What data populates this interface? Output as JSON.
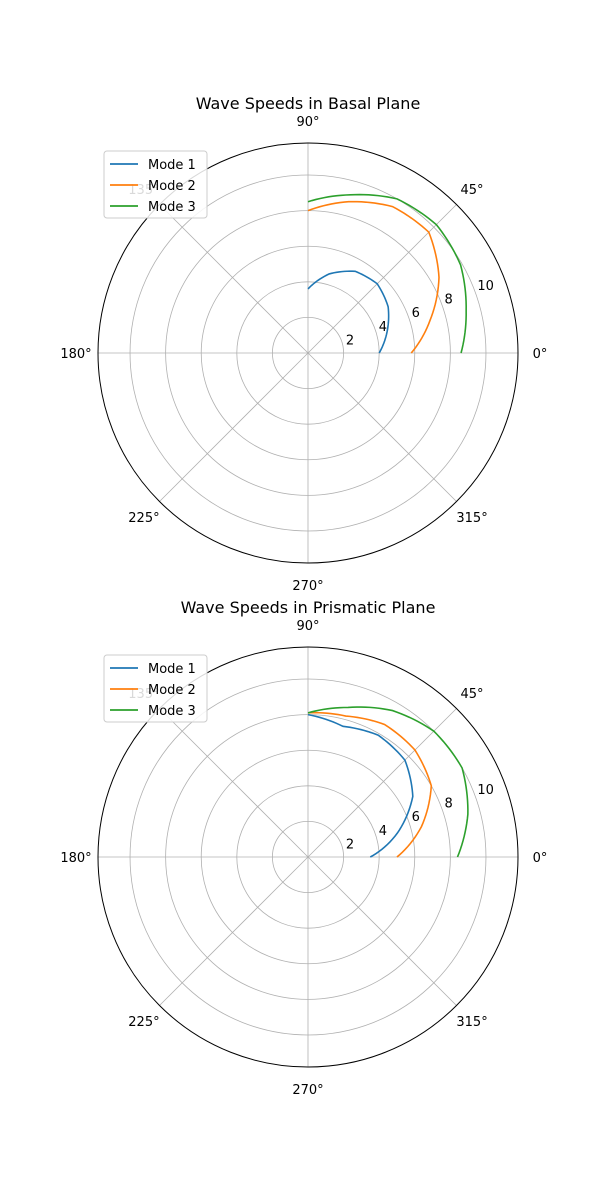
{
  "chart_data": [
    {
      "type": "line",
      "projection": "polar",
      "title": "Wave Speeds in Basal Plane",
      "theta_unit": "degrees",
      "theta_tick_labels": [
        "0°",
        "45°",
        "90°",
        "135°",
        "180°",
        "225°",
        "270°",
        "315°"
      ],
      "r_tick_labels": [
        "2",
        "4",
        "6",
        "8",
        "10"
      ],
      "rlim": [
        0,
        11.8
      ],
      "grid": true,
      "legend_position": "upper-left",
      "series": [
        {
          "name": "Mode 1",
          "color": "#1f77b4",
          "theta": [
            0,
            15,
            30,
            45,
            60,
            75,
            90
          ],
          "r": [
            4.0,
            4.6,
            5.2,
            5.5,
            5.3,
            4.6,
            3.6
          ]
        },
        {
          "name": "Mode 2",
          "color": "#ff7f0e",
          "theta": [
            0,
            15,
            30,
            45,
            60,
            75,
            90
          ],
          "r": [
            5.8,
            7.1,
            8.5,
            9.6,
            9.5,
            8.8,
            8.0
          ]
        },
        {
          "name": "Mode 3",
          "color": "#2ca02c",
          "theta": [
            0,
            15,
            30,
            45,
            60,
            75,
            90
          ],
          "r": [
            8.6,
            9.2,
            9.9,
            10.2,
            10.0,
            9.2,
            8.5
          ]
        }
      ]
    },
    {
      "type": "line",
      "projection": "polar",
      "title": "Wave Speeds in Prismatic Plane",
      "theta_unit": "degrees",
      "theta_tick_labels": [
        "0°",
        "45°",
        "90°",
        "135°",
        "180°",
        "225°",
        "270°",
        "315°"
      ],
      "r_tick_labels": [
        "2",
        "4",
        "6",
        "8",
        "10"
      ],
      "rlim": [
        0,
        11.8
      ],
      "grid": true,
      "legend_position": "upper-left",
      "series": [
        {
          "name": "Mode 1",
          "color": "#1f77b4",
          "theta": [
            0,
            15,
            30,
            45,
            60,
            75,
            90
          ],
          "r": [
            3.5,
            5.2,
            6.8,
            7.7,
            7.9,
            7.6,
            8.0
          ]
        },
        {
          "name": "Mode 2",
          "color": "#ff7f0e",
          "theta": [
            0,
            15,
            30,
            45,
            60,
            75,
            90
          ],
          "r": [
            5.0,
            6.6,
            8.0,
            8.5,
            8.6,
            8.2,
            8.1
          ]
        },
        {
          "name": "Mode 3",
          "color": "#2ca02c",
          "theta": [
            0,
            15,
            30,
            45,
            60,
            75,
            90
          ],
          "r": [
            8.4,
            9.3,
            10.0,
            10.0,
            9.5,
            8.7,
            8.1
          ]
        }
      ]
    }
  ]
}
